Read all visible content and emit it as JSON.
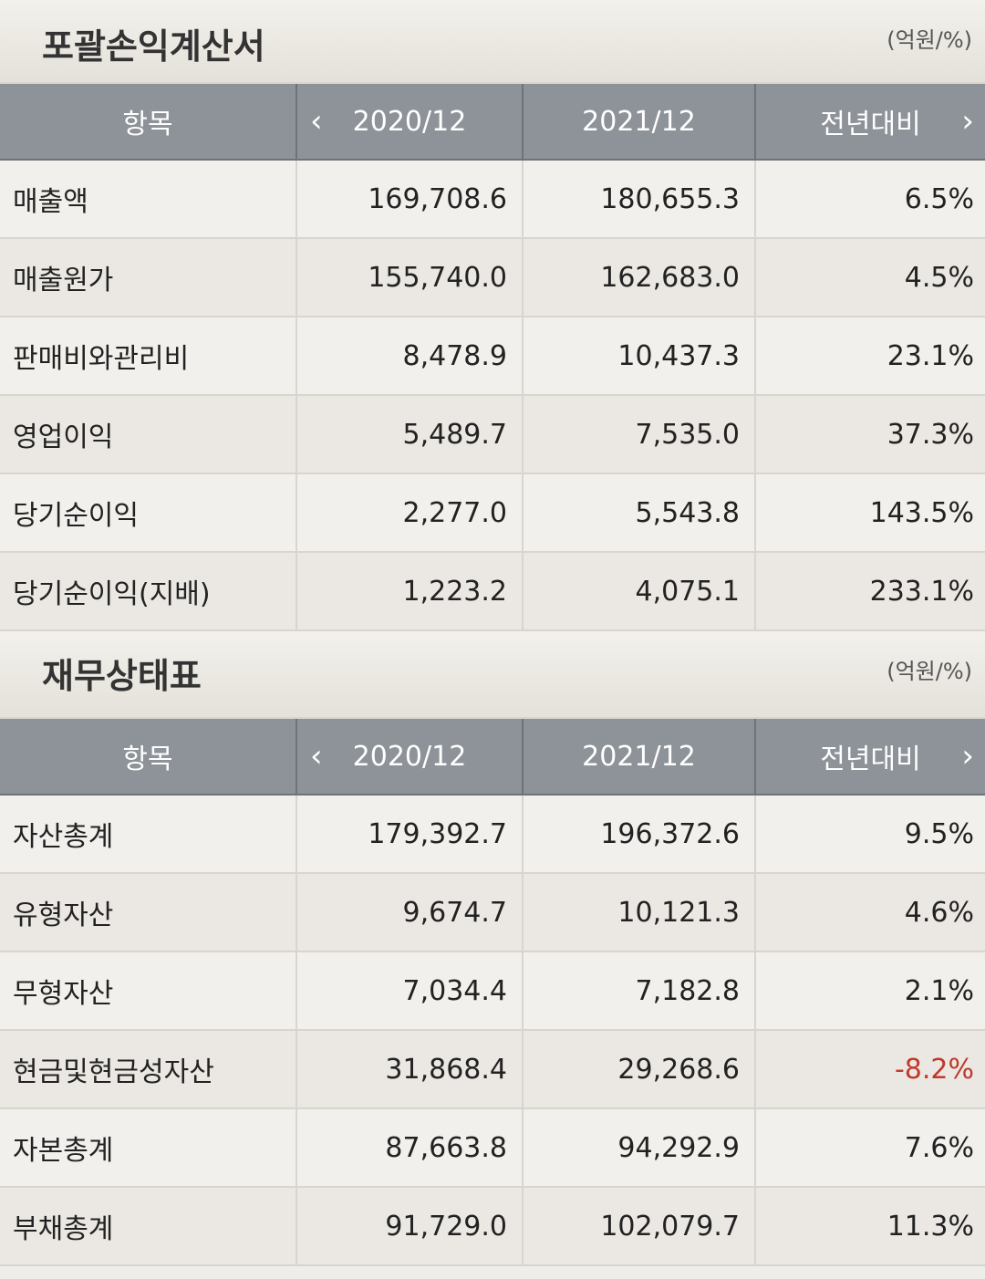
{
  "income_statement": {
    "title": "포괄손익계산서",
    "unit": "(억원/%)",
    "headers": {
      "item": "항목",
      "col1": "2020/12",
      "col2": "2021/12",
      "col3": "전년대비"
    },
    "rows": [
      {
        "label": "매출액",
        "v2020": "169,708.6",
        "v2021": "180,655.3",
        "yoy": "6.5%"
      },
      {
        "label": "매출원가",
        "v2020": "155,740.0",
        "v2021": "162,683.0",
        "yoy": "4.5%"
      },
      {
        "label": "판매비와관리비",
        "v2020": "8,478.9",
        "v2021": "10,437.3",
        "yoy": "23.1%"
      },
      {
        "label": "영업이익",
        "v2020": "5,489.7",
        "v2021": "7,535.0",
        "yoy": "37.3%"
      },
      {
        "label": "당기순이익",
        "v2020": "2,277.0",
        "v2021": "5,543.8",
        "yoy": "143.5%"
      },
      {
        "label": "당기순이익(지배)",
        "v2020": "1,223.2",
        "v2021": "4,075.1",
        "yoy": "233.1%"
      }
    ]
  },
  "balance_sheet": {
    "title": "재무상태표",
    "unit": "(억원/%)",
    "headers": {
      "item": "항목",
      "col1": "2020/12",
      "col2": "2021/12",
      "col3": "전년대비"
    },
    "rows": [
      {
        "label": "자산총계",
        "v2020": "179,392.7",
        "v2021": "196,372.6",
        "yoy": "9.5%"
      },
      {
        "label": "유형자산",
        "v2020": "9,674.7",
        "v2021": "10,121.3",
        "yoy": "4.6%"
      },
      {
        "label": "무형자산",
        "v2020": "7,034.4",
        "v2021": "7,182.8",
        "yoy": "2.1%"
      },
      {
        "label": "현금및현금성자산",
        "v2020": "31,868.4",
        "v2021": "29,268.6",
        "yoy": "-8.2%"
      },
      {
        "label": "자본총계",
        "v2020": "87,663.8",
        "v2021": "94,292.9",
        "yoy": "7.6%"
      },
      {
        "label": "부채총계",
        "v2020": "91,729.0",
        "v2021": "102,079.7",
        "yoy": "11.3%"
      }
    ]
  },
  "icons": {
    "prev": "chevron-left-icon",
    "next": "chevron-right-icon"
  },
  "colors": {
    "header_bg": "#8e9399",
    "negative": "#c0392b"
  }
}
